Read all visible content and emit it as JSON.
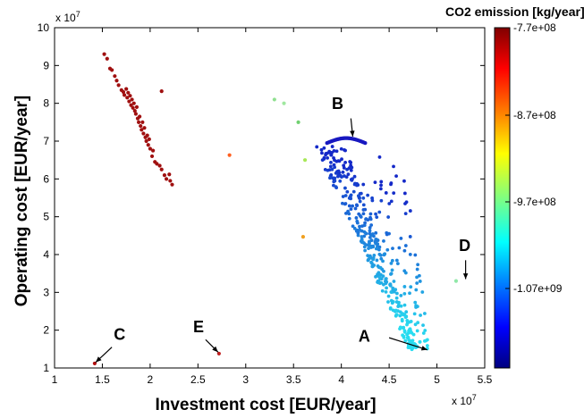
{
  "chart_data": {
    "type": "scatter",
    "xlabel": "Investment cost [EUR/year]",
    "ylabel": "Operating cost [EUR/year]",
    "x_exponent_label": "x 10",
    "x_exponent": "7",
    "y_exponent_label": "x 10",
    "y_exponent": "7",
    "xlim": [
      1.0,
      5.5
    ],
    "ylim": [
      1.0,
      10.0
    ],
    "xticks": [
      "1",
      "1.5",
      "2",
      "2.5",
      "3",
      "3.5",
      "4",
      "4.5",
      "5",
      "5.5"
    ],
    "yticks": [
      "1",
      "2",
      "3",
      "4",
      "5",
      "6",
      "7",
      "8",
      "9",
      "10"
    ],
    "grid": false,
    "colorbar": {
      "label": "CO2 emission [kg/year]",
      "ticks": [
        "-7.7e+08",
        "-8.7e+08",
        "-9.7e+08",
        "-1.07e+09"
      ],
      "colors": [
        "#800000",
        "#ff0000",
        "#ff8000",
        "#ffff00",
        "#80ff80",
        "#00ffff",
        "#0080ff",
        "#0000ff",
        "#000080"
      ]
    },
    "clusters": [
      {
        "group": "left-red",
        "color": "#a01010",
        "points": [
          [
            1.52,
            9.3
          ],
          [
            1.55,
            9.18
          ],
          [
            1.58,
            8.92
          ],
          [
            1.6,
            8.88
          ],
          [
            1.63,
            8.72
          ],
          [
            1.65,
            8.6
          ],
          [
            1.67,
            8.48
          ],
          [
            1.7,
            8.35
          ],
          [
            1.72,
            8.3
          ],
          [
            1.73,
            8.22
          ],
          [
            1.75,
            8.38
          ],
          [
            1.76,
            8.15
          ],
          [
            1.77,
            8.28
          ],
          [
            1.78,
            8.05
          ],
          [
            1.79,
            8.2
          ],
          [
            1.8,
            7.95
          ],
          [
            1.81,
            8.1
          ],
          [
            1.82,
            7.88
          ],
          [
            1.83,
            8.0
          ],
          [
            1.84,
            7.8
          ],
          [
            1.85,
            7.72
          ],
          [
            1.86,
            7.9
          ],
          [
            1.87,
            7.6
          ],
          [
            1.88,
            7.5
          ],
          [
            1.89,
            7.65
          ],
          [
            1.9,
            7.4
          ],
          [
            1.91,
            7.3
          ],
          [
            1.92,
            7.5
          ],
          [
            1.93,
            7.2
          ],
          [
            1.94,
            7.35
          ],
          [
            1.95,
            7.1
          ],
          [
            1.96,
            7.0
          ],
          [
            1.97,
            7.15
          ],
          [
            1.98,
            6.9
          ],
          [
            1.99,
            7.05
          ],
          [
            2.0,
            6.8
          ],
          [
            2.02,
            6.6
          ],
          [
            2.03,
            6.75
          ],
          [
            2.05,
            6.45
          ],
          [
            2.07,
            6.4
          ],
          [
            2.1,
            6.35
          ],
          [
            2.12,
            6.25
          ],
          [
            2.15,
            6.1
          ],
          [
            2.17,
            6.0
          ],
          [
            2.2,
            6.12
          ],
          [
            2.21,
            5.95
          ],
          [
            2.23,
            5.85
          ],
          [
            2.12,
            8.32
          ]
        ]
      },
      {
        "group": "outliers",
        "color": "mixed",
        "points": [
          [
            3.3,
            8.1
          ],
          [
            3.4,
            8.0
          ],
          [
            3.55,
            7.5
          ],
          [
            3.62,
            6.5
          ],
          [
            3.6,
            4.47
          ],
          [
            2.83,
            6.63
          ],
          [
            5.2,
            3.3
          ],
          [
            1.42,
            1.12
          ],
          [
            2.72,
            1.38
          ]
        ]
      },
      {
        "group": "B-dark-blue-band",
        "color": "#1818c0",
        "x_range": [
          3.85,
          4.25
        ],
        "y_range": [
          6.95,
          7.08
        ]
      },
      {
        "group": "main-descending-front",
        "color": "gradient blue to cyan",
        "x_range": [
          3.7,
          4.9
        ],
        "y_range": [
          1.45,
          6.9
        ]
      }
    ],
    "annotations": [
      {
        "label": "A",
        "x": 4.9,
        "y": 1.45
      },
      {
        "label": "B",
        "x": 4.1,
        "y": 7.0
      },
      {
        "label": "C",
        "x": 1.42,
        "y": 1.12
      },
      {
        "label": "D",
        "x": 5.3,
        "y": 3.3
      },
      {
        "label": "E",
        "x": 2.72,
        "y": 1.38
      }
    ]
  }
}
